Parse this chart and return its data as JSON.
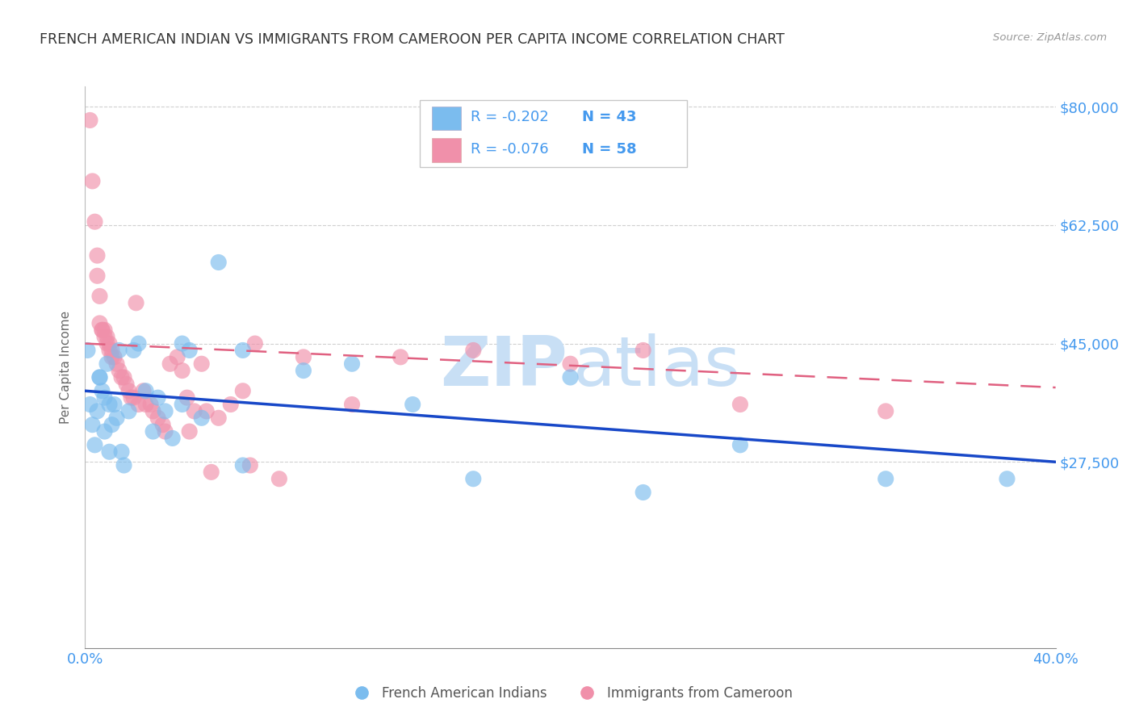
{
  "title": "FRENCH AMERICAN INDIAN VS IMMIGRANTS FROM CAMEROON PER CAPITA INCOME CORRELATION CHART",
  "source": "Source: ZipAtlas.com",
  "ylabel": "Per Capita Income",
  "yticks": [
    0,
    27500,
    45000,
    62500,
    80000
  ],
  "ytick_labels": [
    "",
    "$27,500",
    "$45,000",
    "$62,500",
    "$80,000"
  ],
  "xmin": 0.0,
  "xmax": 0.4,
  "ymin": 0,
  "ymax": 83000,
  "r1": "-0.202",
  "n1": "43",
  "r2": "-0.076",
  "n2": "58",
  "label1": "French American Indians",
  "label2": "Immigrants from Cameroon",
  "color_blue": "#7bbcee",
  "color_pink": "#f090aa",
  "color_line_blue": "#1848c8",
  "color_line_pink": "#e06080",
  "color_blue_text": "#4499ee",
  "title_color": "#333333",
  "watermark_color": "#c8dff5",
  "blue_x": [
    0.001,
    0.002,
    0.003,
    0.004,
    0.005,
    0.006,
    0.007,
    0.008,
    0.009,
    0.01,
    0.011,
    0.012,
    0.013,
    0.014,
    0.015,
    0.016,
    0.018,
    0.02,
    0.022,
    0.025,
    0.028,
    0.03,
    0.033,
    0.036,
    0.04,
    0.043,
    0.048,
    0.055,
    0.065,
    0.09,
    0.11,
    0.135,
    0.16,
    0.2,
    0.23,
    0.27,
    0.33,
    0.38,
    0.006,
    0.008,
    0.01,
    0.04,
    0.065
  ],
  "blue_y": [
    44000,
    36000,
    33000,
    30000,
    35000,
    40000,
    38000,
    32000,
    42000,
    29000,
    33000,
    36000,
    34000,
    44000,
    29000,
    27000,
    35000,
    44000,
    45000,
    38000,
    32000,
    37000,
    35000,
    31000,
    36000,
    44000,
    34000,
    57000,
    44000,
    41000,
    42000,
    36000,
    25000,
    40000,
    23000,
    30000,
    25000,
    25000,
    40000,
    37000,
    36000,
    45000,
    27000
  ],
  "pink_x": [
    0.002,
    0.003,
    0.004,
    0.005,
    0.005,
    0.006,
    0.006,
    0.007,
    0.007,
    0.008,
    0.008,
    0.009,
    0.009,
    0.01,
    0.01,
    0.011,
    0.011,
    0.012,
    0.013,
    0.014,
    0.015,
    0.016,
    0.017,
    0.018,
    0.019,
    0.02,
    0.022,
    0.025,
    0.028,
    0.03,
    0.032,
    0.035,
    0.038,
    0.04,
    0.042,
    0.045,
    0.048,
    0.05,
    0.055,
    0.06,
    0.065,
    0.07,
    0.09,
    0.11,
    0.13,
    0.16,
    0.2,
    0.23,
    0.27,
    0.33,
    0.021,
    0.024,
    0.027,
    0.033,
    0.043,
    0.052,
    0.068,
    0.08
  ],
  "pink_y": [
    78000,
    69000,
    63000,
    58000,
    55000,
    52000,
    48000,
    47000,
    47000,
    47000,
    46000,
    46000,
    45000,
    45000,
    44000,
    44000,
    43000,
    43000,
    42000,
    41000,
    40000,
    40000,
    39000,
    38000,
    37000,
    37000,
    36000,
    36000,
    35000,
    34000,
    33000,
    42000,
    43000,
    41000,
    37000,
    35000,
    42000,
    35000,
    34000,
    36000,
    38000,
    45000,
    43000,
    36000,
    43000,
    44000,
    42000,
    44000,
    36000,
    35000,
    51000,
    38000,
    36000,
    32000,
    32000,
    26000,
    27000,
    25000
  ],
  "blue_line_x0": 0.0,
  "blue_line_y0": 38000,
  "blue_line_x1": 0.4,
  "blue_line_y1": 27500,
  "pink_line_x0": 0.0,
  "pink_line_y0": 45000,
  "pink_line_x1": 0.4,
  "pink_line_y1": 38500
}
